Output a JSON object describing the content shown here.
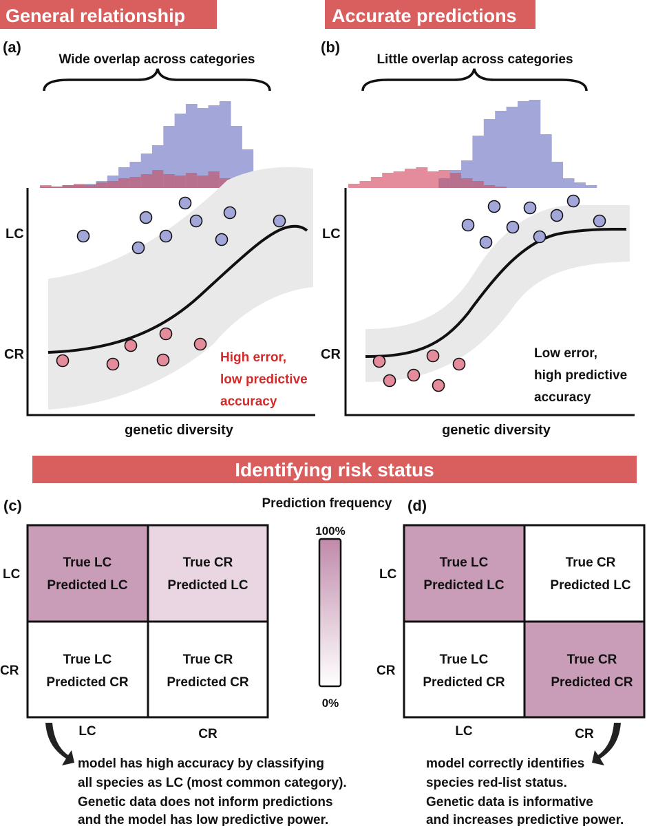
{
  "panel_a": {
    "banner": "General relationship",
    "tag": "(a)",
    "overlap_note": "Wide overlap across categories",
    "y_lc": "LC",
    "y_cr": "CR",
    "x_label": "genetic diversity",
    "error_line1": "High error,",
    "error_line2": "low predictive",
    "error_line3": "accuracy"
  },
  "panel_b": {
    "banner": "Accurate predictions",
    "tag": "(b)",
    "overlap_note": "Little overlap across categories",
    "y_lc": "LC",
    "y_cr": "CR",
    "x_label": "genetic diversity",
    "error_line1": "Low error,",
    "error_line2": "high predictive",
    "error_line3": "accuracy"
  },
  "section_banner": "Identifying risk status",
  "legend": {
    "title": "Prediction frequency",
    "max_label": "100%",
    "min_label": "0%"
  },
  "panel_c": {
    "tag": "(c)",
    "row_lc": "LC",
    "row_cr": "CR",
    "col_lc": "LC",
    "col_cr": "CR",
    "cells": [
      {
        "line1": "True LC",
        "line2": "Predicted LC",
        "freq": 0.85
      },
      {
        "line1": "True CR",
        "line2": "Predicted LC",
        "freq": 0.35
      },
      {
        "line1": "True LC",
        "line2": "Predicted CR",
        "freq": 0.0
      },
      {
        "line1": "True CR",
        "line2": "Predicted CR",
        "freq": 0.0
      }
    ],
    "caption": [
      "model has high accuracy by classifying",
      "all species as LC (most common category).",
      "Genetic data does not inform predictions",
      "and the model has low predictive power."
    ]
  },
  "panel_d": {
    "tag": "(d)",
    "row_lc": "LC",
    "row_cr": "CR",
    "col_lc": "LC",
    "col_cr": "CR",
    "cells": [
      {
        "line1": "True LC",
        "line2": "Predicted LC",
        "freq": 0.85
      },
      {
        "line1": "True CR",
        "line2": "Predicted LC",
        "freq": 0.0
      },
      {
        "line1": "True LC",
        "line2": "Predicted CR",
        "freq": 0.0
      },
      {
        "line1": "True CR",
        "line2": "Predicted CR",
        "freq": 0.85
      }
    ],
    "caption": [
      "model correctly identifies",
      "species red-list status.",
      "Genetic data is informative",
      "and increases predictive power."
    ]
  },
  "colors": {
    "banner": "#d95f5f",
    "lc_blue": "#a2a6d9",
    "cr_pink": "#e58c9c",
    "overlap": "#b8708f",
    "band": "#e9e9e9",
    "cell_high": "#c796b5",
    "cell_low": "#e5cbdc",
    "error_red": "#d42a2a"
  }
}
